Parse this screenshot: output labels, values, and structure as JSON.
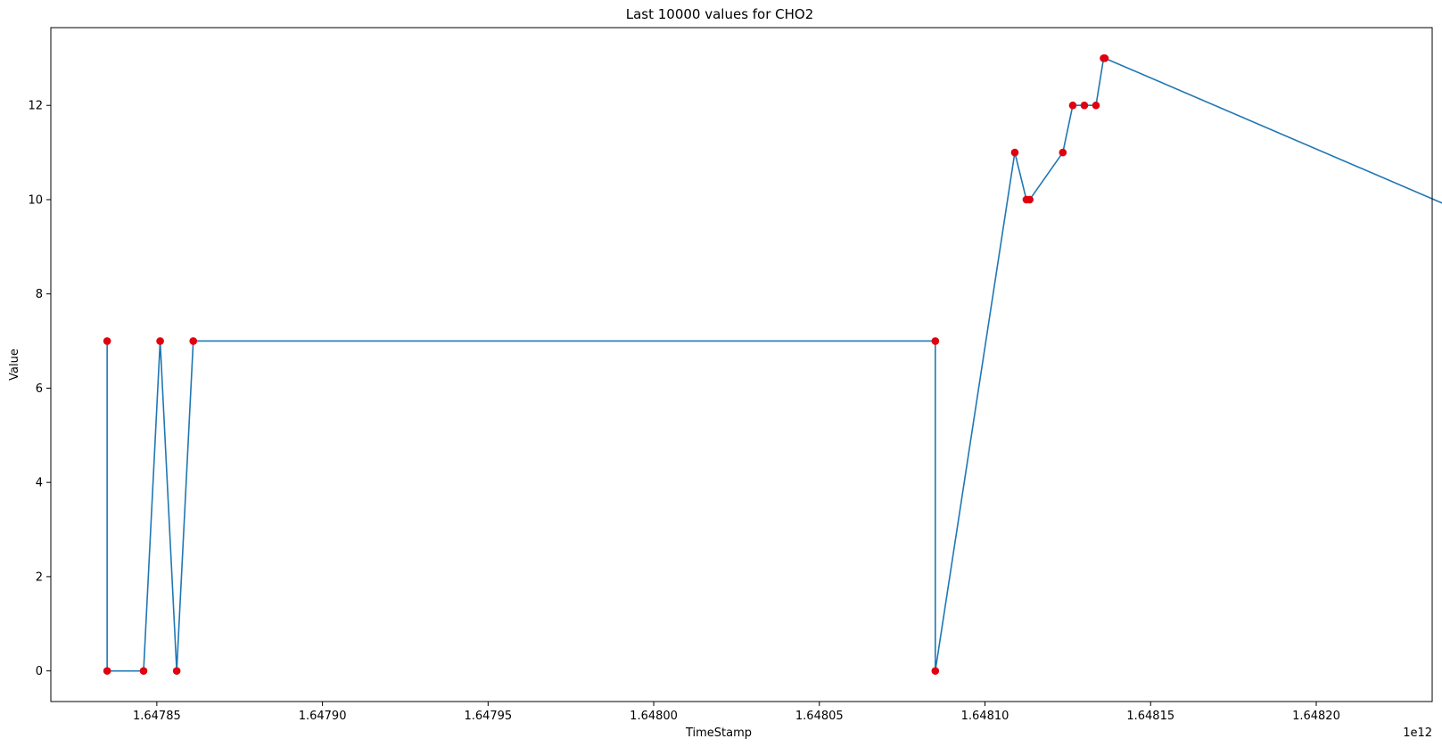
{
  "chart_data": {
    "type": "line",
    "title": "Last 10000 values for CHO2",
    "xlabel": "TimeStamp",
    "ylabel": "Value",
    "x_offset_label": "1e12",
    "xlim": [
      1647818000000.0,
      1648235000000.0
    ],
    "ylim": [
      -0.65,
      13.65
    ],
    "x_ticks": [
      {
        "value": 1647850000000.0,
        "label": "1.64785"
      },
      {
        "value": 1647900000000.0,
        "label": "1.64790"
      },
      {
        "value": 1647950000000.0,
        "label": "1.64795"
      },
      {
        "value": 1648000000000.0,
        "label": "1.64800"
      },
      {
        "value": 1648050000000.0,
        "label": "1.64805"
      },
      {
        "value": 1648100000000.0,
        "label": "1.64810"
      },
      {
        "value": 1648150000000.0,
        "label": "1.64815"
      },
      {
        "value": 1648200000000.0,
        "label": "1.64820"
      }
    ],
    "y_ticks": [
      {
        "value": 0,
        "label": "0"
      },
      {
        "value": 2,
        "label": "2"
      },
      {
        "value": 4,
        "label": "4"
      },
      {
        "value": 6,
        "label": "6"
      },
      {
        "value": 8,
        "label": "8"
      },
      {
        "value": 10,
        "label": "10"
      },
      {
        "value": 12,
        "label": "12"
      }
    ],
    "grid": false,
    "line_color": "#1f77b4",
    "marker_color": "#e0000f",
    "x_start": 1647835000000.0,
    "x_step": 250000000.0,
    "points_count": 104,
    "base_high": 7,
    "base_low": 0,
    "anomalies": [
      {
        "x": 1647846000000.0,
        "y": 0
      },
      {
        "x": 1647851000000.0,
        "y": 7
      },
      {
        "x": 1647856000000.0,
        "y": 0
      },
      {
        "x": 1647861000000.0,
        "y": 7
      },
      {
        "x": 1648109000000.0,
        "y": 11
      },
      {
        "x": 1648112500000.0,
        "y": 10
      },
      {
        "x": 1648113500000.0,
        "y": 10
      },
      {
        "x": 1648123500000.0,
        "y": 11
      },
      {
        "x": 1648126500000.0,
        "y": 12
      },
      {
        "x": 1648130000000.0,
        "y": 12
      },
      {
        "x": 1648133500000.0,
        "y": 12
      },
      {
        "x": 1648135800000.0,
        "y": 13
      },
      {
        "x": 1648136200000.0,
        "y": 13
      }
    ]
  }
}
